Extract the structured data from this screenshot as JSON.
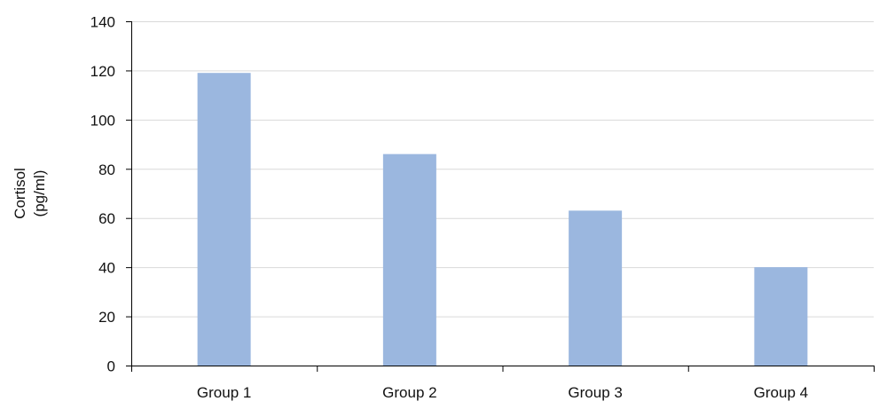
{
  "chart_data": {
    "type": "bar",
    "categories": [
      "Group 1",
      "Group 2",
      "Group 3",
      "Group 4"
    ],
    "values": [
      119,
      86,
      63,
      40
    ],
    "title": "",
    "xlabel": "",
    "ylabel_lines": [
      "Cortisol",
      "(pg/ml)"
    ],
    "ylim": [
      0,
      140
    ],
    "yticks": [
      0,
      20,
      40,
      60,
      80,
      100,
      120,
      140
    ],
    "grid": true,
    "legend": "none",
    "colors": {
      "bar": "#9bb7df",
      "grid": "#d9d9d9",
      "axis": "#000000"
    }
  }
}
